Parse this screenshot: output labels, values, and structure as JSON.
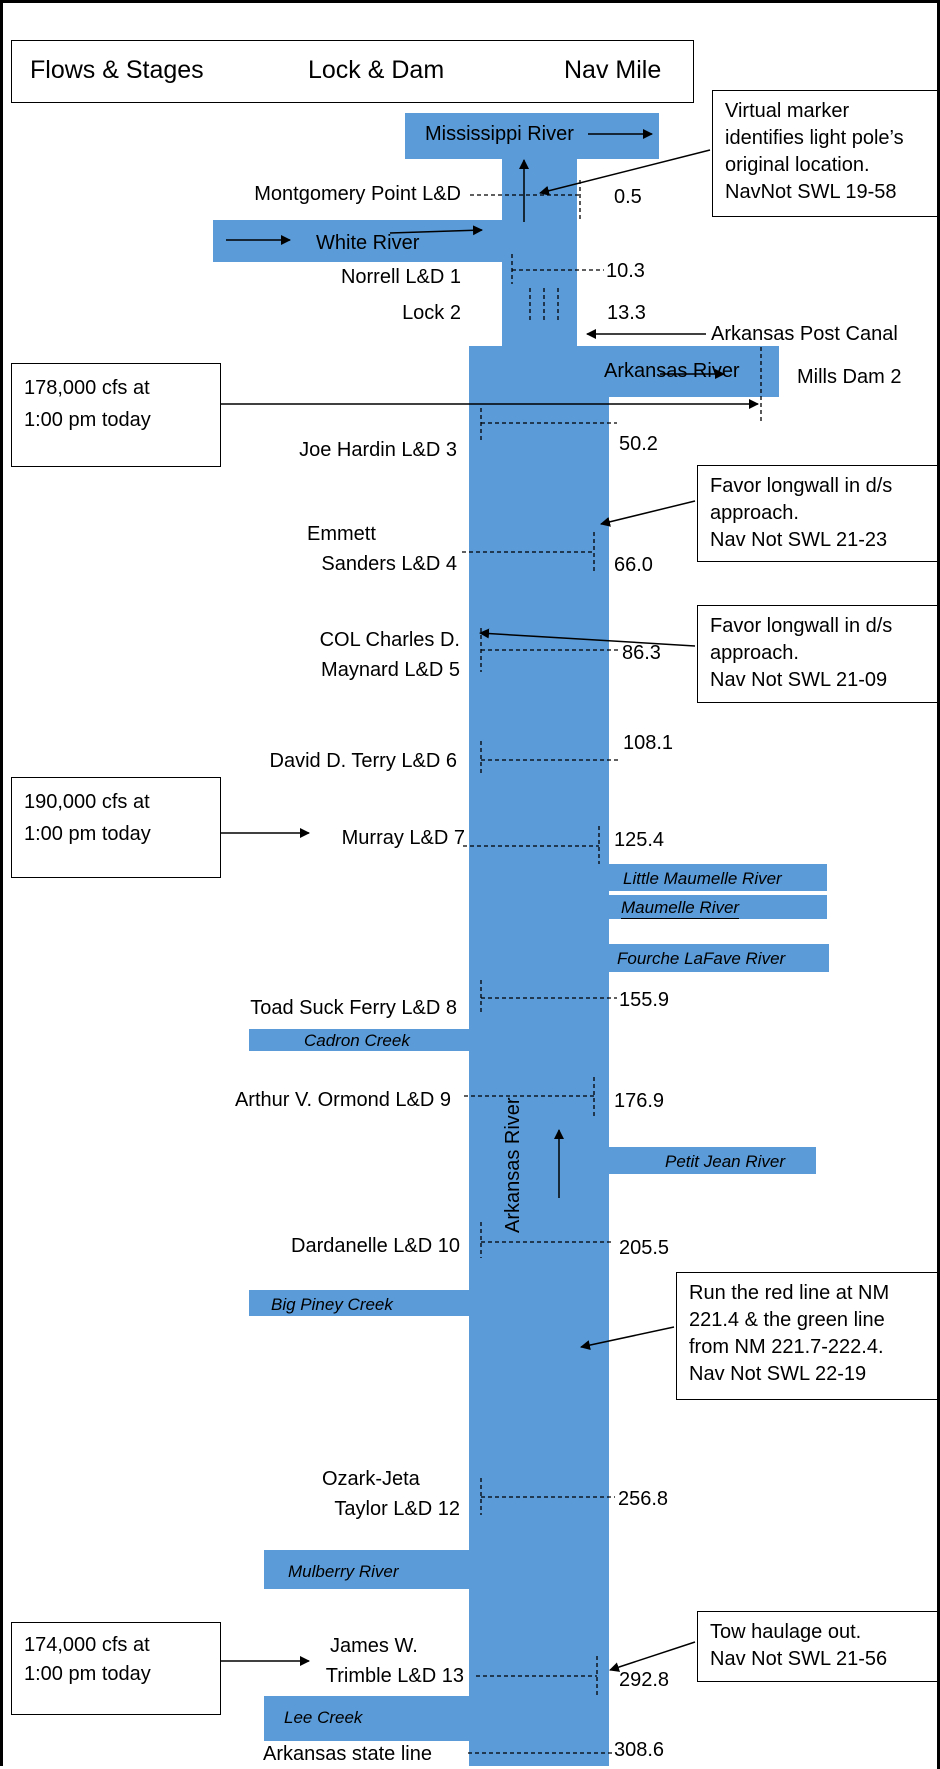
{
  "header": {
    "flows": "Flows & Stages",
    "lockdam": "Lock & Dam",
    "navmile": "Nav Mile"
  },
  "rivers": {
    "mississippi": "Mississippi River",
    "white": "White River",
    "arkansas_top": "Arkansas River",
    "arkansas_vertical": "Arkansas River"
  },
  "locks": [
    {
      "name": "Montgomery Point L&D",
      "mile": "0.5"
    },
    {
      "name": "Norrell L&D 1",
      "mile": "10.3"
    },
    {
      "name": "Lock 2",
      "mile": "13.3"
    },
    {
      "name": "Joe Hardin L&D 3",
      "mile": "50.2"
    },
    {
      "name1": "Emmett",
      "name2": "Sanders L&D 4",
      "mile": "66.0"
    },
    {
      "name1": "COL Charles D.",
      "name2": "Maynard L&D 5",
      "mile": "86.3"
    },
    {
      "name": "David D. Terry L&D 6",
      "mile": "108.1"
    },
    {
      "name": "Murray L&D 7",
      "mile": "125.4"
    },
    {
      "name": "Toad Suck Ferry L&D 8",
      "mile": "155.9"
    },
    {
      "name": "Arthur V. Ormond L&D 9",
      "mile": "176.9"
    },
    {
      "name": "Dardanelle L&D 10",
      "mile": "205.5"
    },
    {
      "name1": "Ozark-Jeta",
      "name2": "Taylor L&D 12",
      "mile": "256.8"
    },
    {
      "name1": "James W.",
      "name2": "Trimble L&D 13",
      "mile": "292.8"
    },
    {
      "name": "Arkansas state line",
      "mile": "308.6"
    }
  ],
  "other": {
    "post_canal": "Arkansas Post Canal",
    "mills": "Mills Dam 2"
  },
  "tributaries": {
    "little_maumelle": "Little Maumelle River",
    "maumelle": "Maumelle River",
    "fourche": "Fourche LaFave River",
    "cadron": "Cadron Creek",
    "petit_jean": "Petit Jean River",
    "big_piney": "Big Piney Creek",
    "mulberry": "Mulberry River",
    "lee": "Lee Creek"
  },
  "flows": [
    {
      "l1": "178,000 cfs at",
      "l2": "1:00 pm today"
    },
    {
      "l1": "190,000 cfs at",
      "l2": "1:00 pm today"
    },
    {
      "l1": "174,000 cfs at",
      "l2": "1:00 pm today"
    }
  ],
  "notes": [
    {
      "l1": "Virtual marker",
      "l2": "identifies light pole’s",
      "l3": "original location.",
      "l4": "NavNot SWL 19-58"
    },
    {
      "l1": "Favor longwall in d/s",
      "l2": "approach.",
      "l3": "Nav Not SWL 21-23"
    },
    {
      "l1": "Favor longwall in d/s",
      "l2": "approach.",
      "l3": "Nav Not SWL 21-09"
    },
    {
      "l1": "Run the red line at NM",
      "l2": "221.4 & the green line",
      "l3": "from NM 221.7-222.4.",
      "l4": "Nav Not SWL 22-19"
    },
    {
      "l1": "Tow haulage out.",
      "l2": "Nav Not SWL 21-56"
    }
  ],
  "colors": {
    "river": "#5a9bd8"
  }
}
